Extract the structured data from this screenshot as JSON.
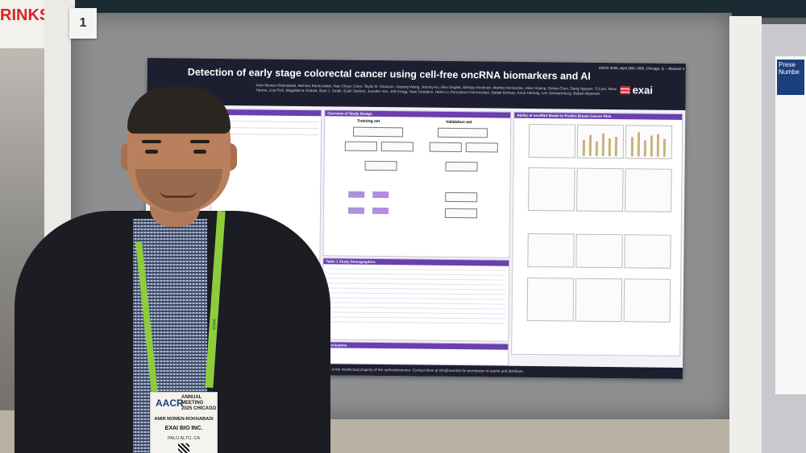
{
  "background": {
    "sign_text": "RINKS",
    "board_number": "1",
    "right_poster_title": "Prese\nNumbe"
  },
  "poster": {
    "title": "Detection of early stage colorectal cancer using cell-free oncRNA biomarkers and AI",
    "meeting": "AACR 2025, April 25th–30th, Chicago, IL – Abstract #",
    "authors": "Amir Momen-Roknabadi, Mehran Karimzadeh, Nae-Chyun Chen, Taylor B. Cavazos, Jieyang Wang, Jeremy Ku, Alex Degtiar, Abhaya Krishnan, Martha Hernandez, Alice Hsiang, Selina Chen, Dang Nguyen, Ti Lam, Rose Hanna, Lisa Fish, Magdalena Gebala, Ilkan J. Smith, Sukh Sekhon, Jennifer Yen, Jeff Gregg, Hani Goodarzi, Helen Li, Fereydoun Hormozdiari, Babak Behsaz, Anna Hartwig, Lee Schwartzberg, Babak Alipanahi",
    "logo": "exai",
    "sections": {
      "study_design": "Overview of Study Design",
      "training": "Training set",
      "validation": "Validation set",
      "demographics": "Table 1 Study Demographics",
      "conclusions": "Conclusions",
      "ability": "Ability of oncRNA Model to Predict Breast Cancer Risk"
    },
    "footer": "This presentation is the intellectual property of the author/presenter. Contact them at info@exai.bio for permission to reprint and distribute."
  },
  "badge": {
    "aacr": "AACR",
    "meeting_line1": "ANNUAL",
    "meeting_line2": "MEETING",
    "meeting_line3": "2025 CHICAGO",
    "name": "AMIR MOMEN-ROKNABADI",
    "company": "EXAI BIO INC.",
    "city": "PALO ALTO, CA",
    "lanyard": "AACR"
  }
}
